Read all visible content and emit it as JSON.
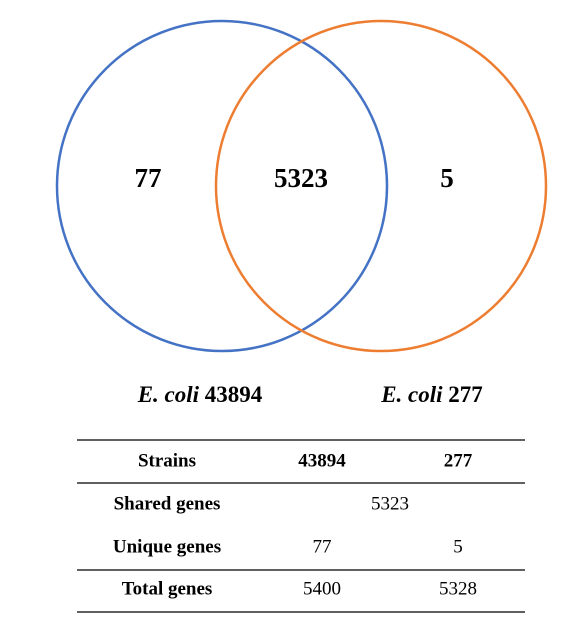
{
  "venn": {
    "sets": [
      {
        "species": "E. coli",
        "strain": "43894",
        "unique": 77,
        "color": "#4472c4"
      },
      {
        "species": "E. coli",
        "strain": "277",
        "unique": 5,
        "color": "#ed7d31"
      }
    ],
    "shared": 5323
  },
  "table": {
    "header": [
      "Strains",
      "43894",
      "277"
    ],
    "rows": [
      [
        "Shared genes",
        5323
      ],
      [
        "Unique genes",
        77,
        5
      ],
      [
        "Total genes",
        5400,
        5328
      ]
    ]
  }
}
